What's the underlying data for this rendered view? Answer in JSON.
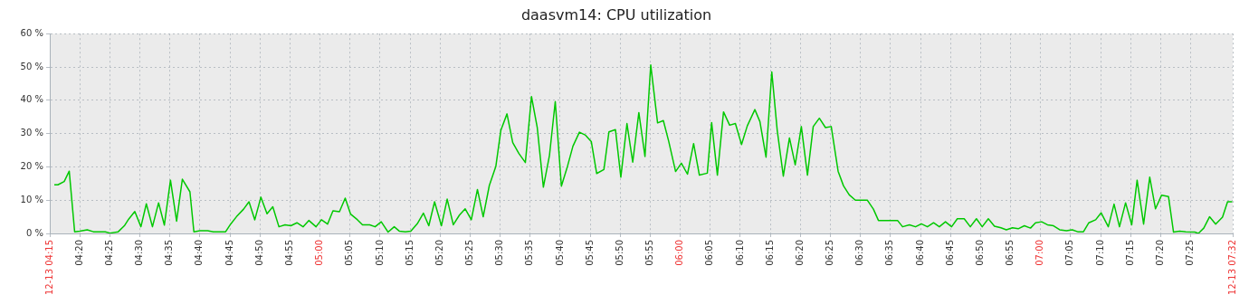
{
  "chart_data": {
    "type": "line",
    "title": "daasvm14: CPU utilization",
    "x": [
      4.2625,
      4.2725,
      4.29,
      4.304,
      4.319,
      4.333,
      4.354,
      4.371,
      4.404,
      4.417,
      4.44,
      4.457,
      4.469,
      4.486,
      4.503,
      4.518,
      4.535,
      4.552,
      4.568,
      4.585,
      4.602,
      4.618,
      4.639,
      4.65,
      4.667,
      4.688,
      4.704,
      4.738,
      4.752,
      4.768,
      4.788,
      4.803,
      4.819,
      4.836,
      4.853,
      4.869,
      4.886,
      4.903,
      4.919,
      4.936,
      4.953,
      4.969,
      4.989,
      5.004,
      5.021,
      5.036,
      5.054,
      5.07,
      5.085,
      5.104,
      5.118,
      5.138,
      5.153,
      5.17,
      5.189,
      5.206,
      5.22,
      5.237,
      5.252,
      5.27,
      5.287,
      5.302,
      5.318,
      5.337,
      5.353,
      5.37,
      5.387,
      5.403,
      5.42,
      5.437,
      5.453,
      5.47,
      5.488,
      5.502,
      5.519,
      5.535,
      5.552,
      5.57,
      5.587,
      5.603,
      5.62,
      5.637,
      5.653,
      5.67,
      5.687,
      5.702,
      5.72,
      5.737,
      5.753,
      5.768,
      5.788,
      5.802,
      5.82,
      5.835,
      5.852,
      5.868,
      5.885,
      5.902,
      5.918,
      5.937,
      5.953,
      5.968,
      5.987,
      6.003,
      6.02,
      6.037,
      6.053,
      6.075,
      6.087,
      6.103,
      6.12,
      6.137,
      6.153,
      6.17,
      6.186,
      6.207,
      6.221,
      6.238,
      6.254,
      6.269,
      6.286,
      6.303,
      6.319,
      6.336,
      6.353,
      6.369,
      6.386,
      6.403,
      6.419,
      6.438,
      6.453,
      6.469,
      6.486,
      6.519,
      6.536,
      6.55,
      6.603,
      6.617,
      6.636,
      6.653,
      6.669,
      6.686,
      6.703,
      6.719,
      6.736,
      6.753,
      6.769,
      6.788,
      6.805,
      6.822,
      6.838,
      6.855,
      6.872,
      6.89,
      6.905,
      6.922,
      6.938,
      6.955,
      6.972,
      6.986,
      7.003,
      7.019,
      7.036,
      7.053,
      7.072,
      7.088,
      7.103,
      7.119,
      7.134,
      7.153,
      7.168,
      7.188,
      7.204,
      7.219,
      7.236,
      7.253,
      7.268,
      7.286,
      7.303,
      7.319,
      7.336,
      7.355,
      7.369,
      7.386,
      7.403,
      7.428,
      7.438,
      7.453,
      7.469,
      7.486,
      7.505,
      7.519,
      7.532
    ],
    "values": [
      14.6,
      14.6,
      15.6,
      18.7,
      0.5,
      0.7,
      1.1,
      0.5,
      0.5,
      0.1,
      0.5,
      2.3,
      4.3,
      6.6,
      2.0,
      8.9,
      2.0,
      9.2,
      2.5,
      16.0,
      3.7,
      16.3,
      12.5,
      0.5,
      0.8,
      0.8,
      0.5,
      0.5,
      2.8,
      5.0,
      7.3,
      9.5,
      4.1,
      10.9,
      5.9,
      8.0,
      2.0,
      2.6,
      2.3,
      3.2,
      2.0,
      3.9,
      2.0,
      4.1,
      2.8,
      6.8,
      6.5,
      10.6,
      5.8,
      4.1,
      2.6,
      2.6,
      2.0,
      3.5,
      0.4,
      2.0,
      0.7,
      0.5,
      0.7,
      2.9,
      6.1,
      2.3,
      9.5,
      2.3,
      10.3,
      2.6,
      5.5,
      7.4,
      4.1,
      13.2,
      5.0,
      14.4,
      20.1,
      31.0,
      35.9,
      27.3,
      24.0,
      21.3,
      41.1,
      31.8,
      13.9,
      23.5,
      39.6,
      14.2,
      20.2,
      26.2,
      30.4,
      29.5,
      27.6,
      18.0,
      19.2,
      30.5,
      31.2,
      16.9,
      33.0,
      21.4,
      36.3,
      23.1,
      50.6,
      33.2,
      33.9,
      27.6,
      18.6,
      21.1,
      17.8,
      27.0,
      17.5,
      18.1,
      33.3,
      17.5,
      36.5,
      32.5,
      33.0,
      26.7,
      32.3,
      37.2,
      33.6,
      22.9,
      48.5,
      31.0,
      17.2,
      28.7,
      20.6,
      32.1,
      17.5,
      32.1,
      34.6,
      31.8,
      32.1,
      18.7,
      14.3,
      11.6,
      10.0,
      10.0,
      7.3,
      3.9,
      3.9,
      2.0,
      2.6,
      2.0,
      2.9,
      2.0,
      3.2,
      2.0,
      3.5,
      2.0,
      4.4,
      4.4,
      2.0,
      4.4,
      2.0,
      4.4,
      2.2,
      1.7,
      1.1,
      1.7,
      1.4,
      2.3,
      1.6,
      3.2,
      3.5,
      2.6,
      2.3,
      1.1,
      0.8,
      1.1,
      0.5,
      0.5,
      3.2,
      4.1,
      6.2,
      2.0,
      8.8,
      2.0,
      9.2,
      2.6,
      16.0,
      2.8,
      16.9,
      7.4,
      11.5,
      11.1,
      0.4,
      0.7,
      0.5,
      0.4,
      0,
      1.6,
      5.0,
      2.8,
      4.9,
      9.5,
      9.5
    ],
    "color": "#00c800",
    "xlim": [
      4.25,
      7.5333
    ],
    "xticks": [
      {
        "value": 4.25,
        "label": "12-13 04:15"
      },
      {
        "value": 4.3333,
        "label": "04:20"
      },
      {
        "value": 4.4167,
        "label": "04:25"
      },
      {
        "value": 4.5,
        "label": "04:30"
      },
      {
        "value": 4.5833,
        "label": "04:35"
      },
      {
        "value": 4.6667,
        "label": "04:40"
      },
      {
        "value": 4.75,
        "label": "04:45"
      },
      {
        "value": 4.8333,
        "label": "04:50"
      },
      {
        "value": 4.9167,
        "label": "04:55"
      },
      {
        "value": 5,
        "label": "05:00"
      },
      {
        "value": 5.0833,
        "label": "05:05"
      },
      {
        "value": 5.1667,
        "label": "05:10"
      },
      {
        "value": 5.25,
        "label": "05:15"
      },
      {
        "value": 5.3333,
        "label": "05:20"
      },
      {
        "value": 5.4167,
        "label": "05:25"
      },
      {
        "value": 5.5,
        "label": "05:30"
      },
      {
        "value": 5.5833,
        "label": "05:35"
      },
      {
        "value": 5.6667,
        "label": "05:40"
      },
      {
        "value": 5.75,
        "label": "05:45"
      },
      {
        "value": 5.8333,
        "label": "05:50"
      },
      {
        "value": 5.9167,
        "label": "05:55"
      },
      {
        "value": 6,
        "label": "06:00"
      },
      {
        "value": 6.0833,
        "label": "06:05"
      },
      {
        "value": 6.1667,
        "label": "06:10"
      },
      {
        "value": 6.25,
        "label": "06:15"
      },
      {
        "value": 6.3333,
        "label": "06:20"
      },
      {
        "value": 6.4167,
        "label": "06:25"
      },
      {
        "value": 6.5,
        "label": "06:30"
      },
      {
        "value": 6.5833,
        "label": "06:35"
      },
      {
        "value": 6.6667,
        "label": "06:40"
      },
      {
        "value": 6.75,
        "label": "06:45"
      },
      {
        "value": 6.8333,
        "label": "06:50"
      },
      {
        "value": 6.9167,
        "label": "06:55"
      },
      {
        "value": 7,
        "label": "07:00"
      },
      {
        "value": 7.0833,
        "label": "07:05"
      },
      {
        "value": 7.1667,
        "label": "07:10"
      },
      {
        "value": 7.25,
        "label": "07:15"
      },
      {
        "value": 7.3333,
        "label": "07:20"
      },
      {
        "value": 7.4167,
        "label": "07:25"
      },
      {
        "value": 7.5333,
        "label": "12-13 07:32"
      }
    ],
    "ylim": [
      0,
      60
    ],
    "yticks": [
      {
        "value": 0,
        "label": "0 %"
      },
      {
        "value": 10,
        "label": "10 %"
      },
      {
        "value": 20,
        "label": "20 %"
      },
      {
        "value": 30,
        "label": "30 %"
      },
      {
        "value": 40,
        "label": "40 %"
      },
      {
        "value": 50,
        "label": "50 %"
      },
      {
        "value": 60,
        "label": "60 %"
      }
    ],
    "grid": true,
    "marker": "none"
  }
}
